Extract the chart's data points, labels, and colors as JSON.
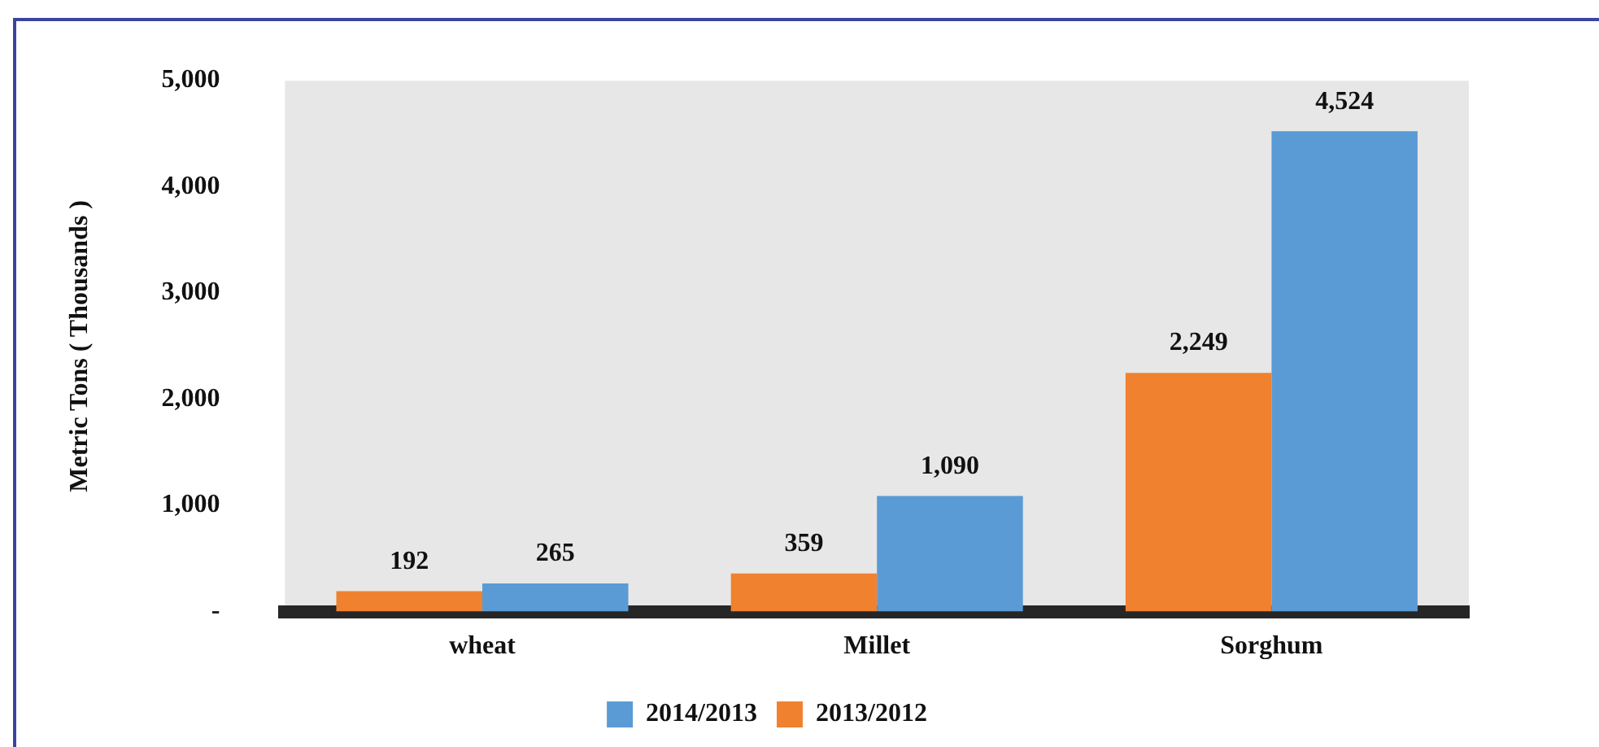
{
  "chart_data": {
    "type": "bar",
    "ylabel": "Metric Tons ( Thousands )",
    "categories": [
      "wheat",
      "Millet",
      "Sorghum"
    ],
    "series": [
      {
        "name": "2013/2012",
        "color": "#f0812f",
        "values": [
          192,
          359,
          2249
        ],
        "value_labels": [
          "192",
          "359",
          "2,249"
        ]
      },
      {
        "name": "2014/2013",
        "color": "#5b9bd5",
        "values": [
          265,
          1090,
          4524
        ],
        "value_labels": [
          "265",
          "1,090",
          "4,524"
        ]
      }
    ],
    "ylim": [
      0,
      5000
    ],
    "yticks": [
      {
        "value": 0,
        "label": "-"
      },
      {
        "value": 1000,
        "label": "1,000"
      },
      {
        "value": 2000,
        "label": "2,000"
      },
      {
        "value": 3000,
        "label": "3,000"
      },
      {
        "value": 4000,
        "label": "4,000"
      },
      {
        "value": 5000,
        "label": "5,000"
      }
    ],
    "grid": false,
    "legend": "bottom"
  }
}
